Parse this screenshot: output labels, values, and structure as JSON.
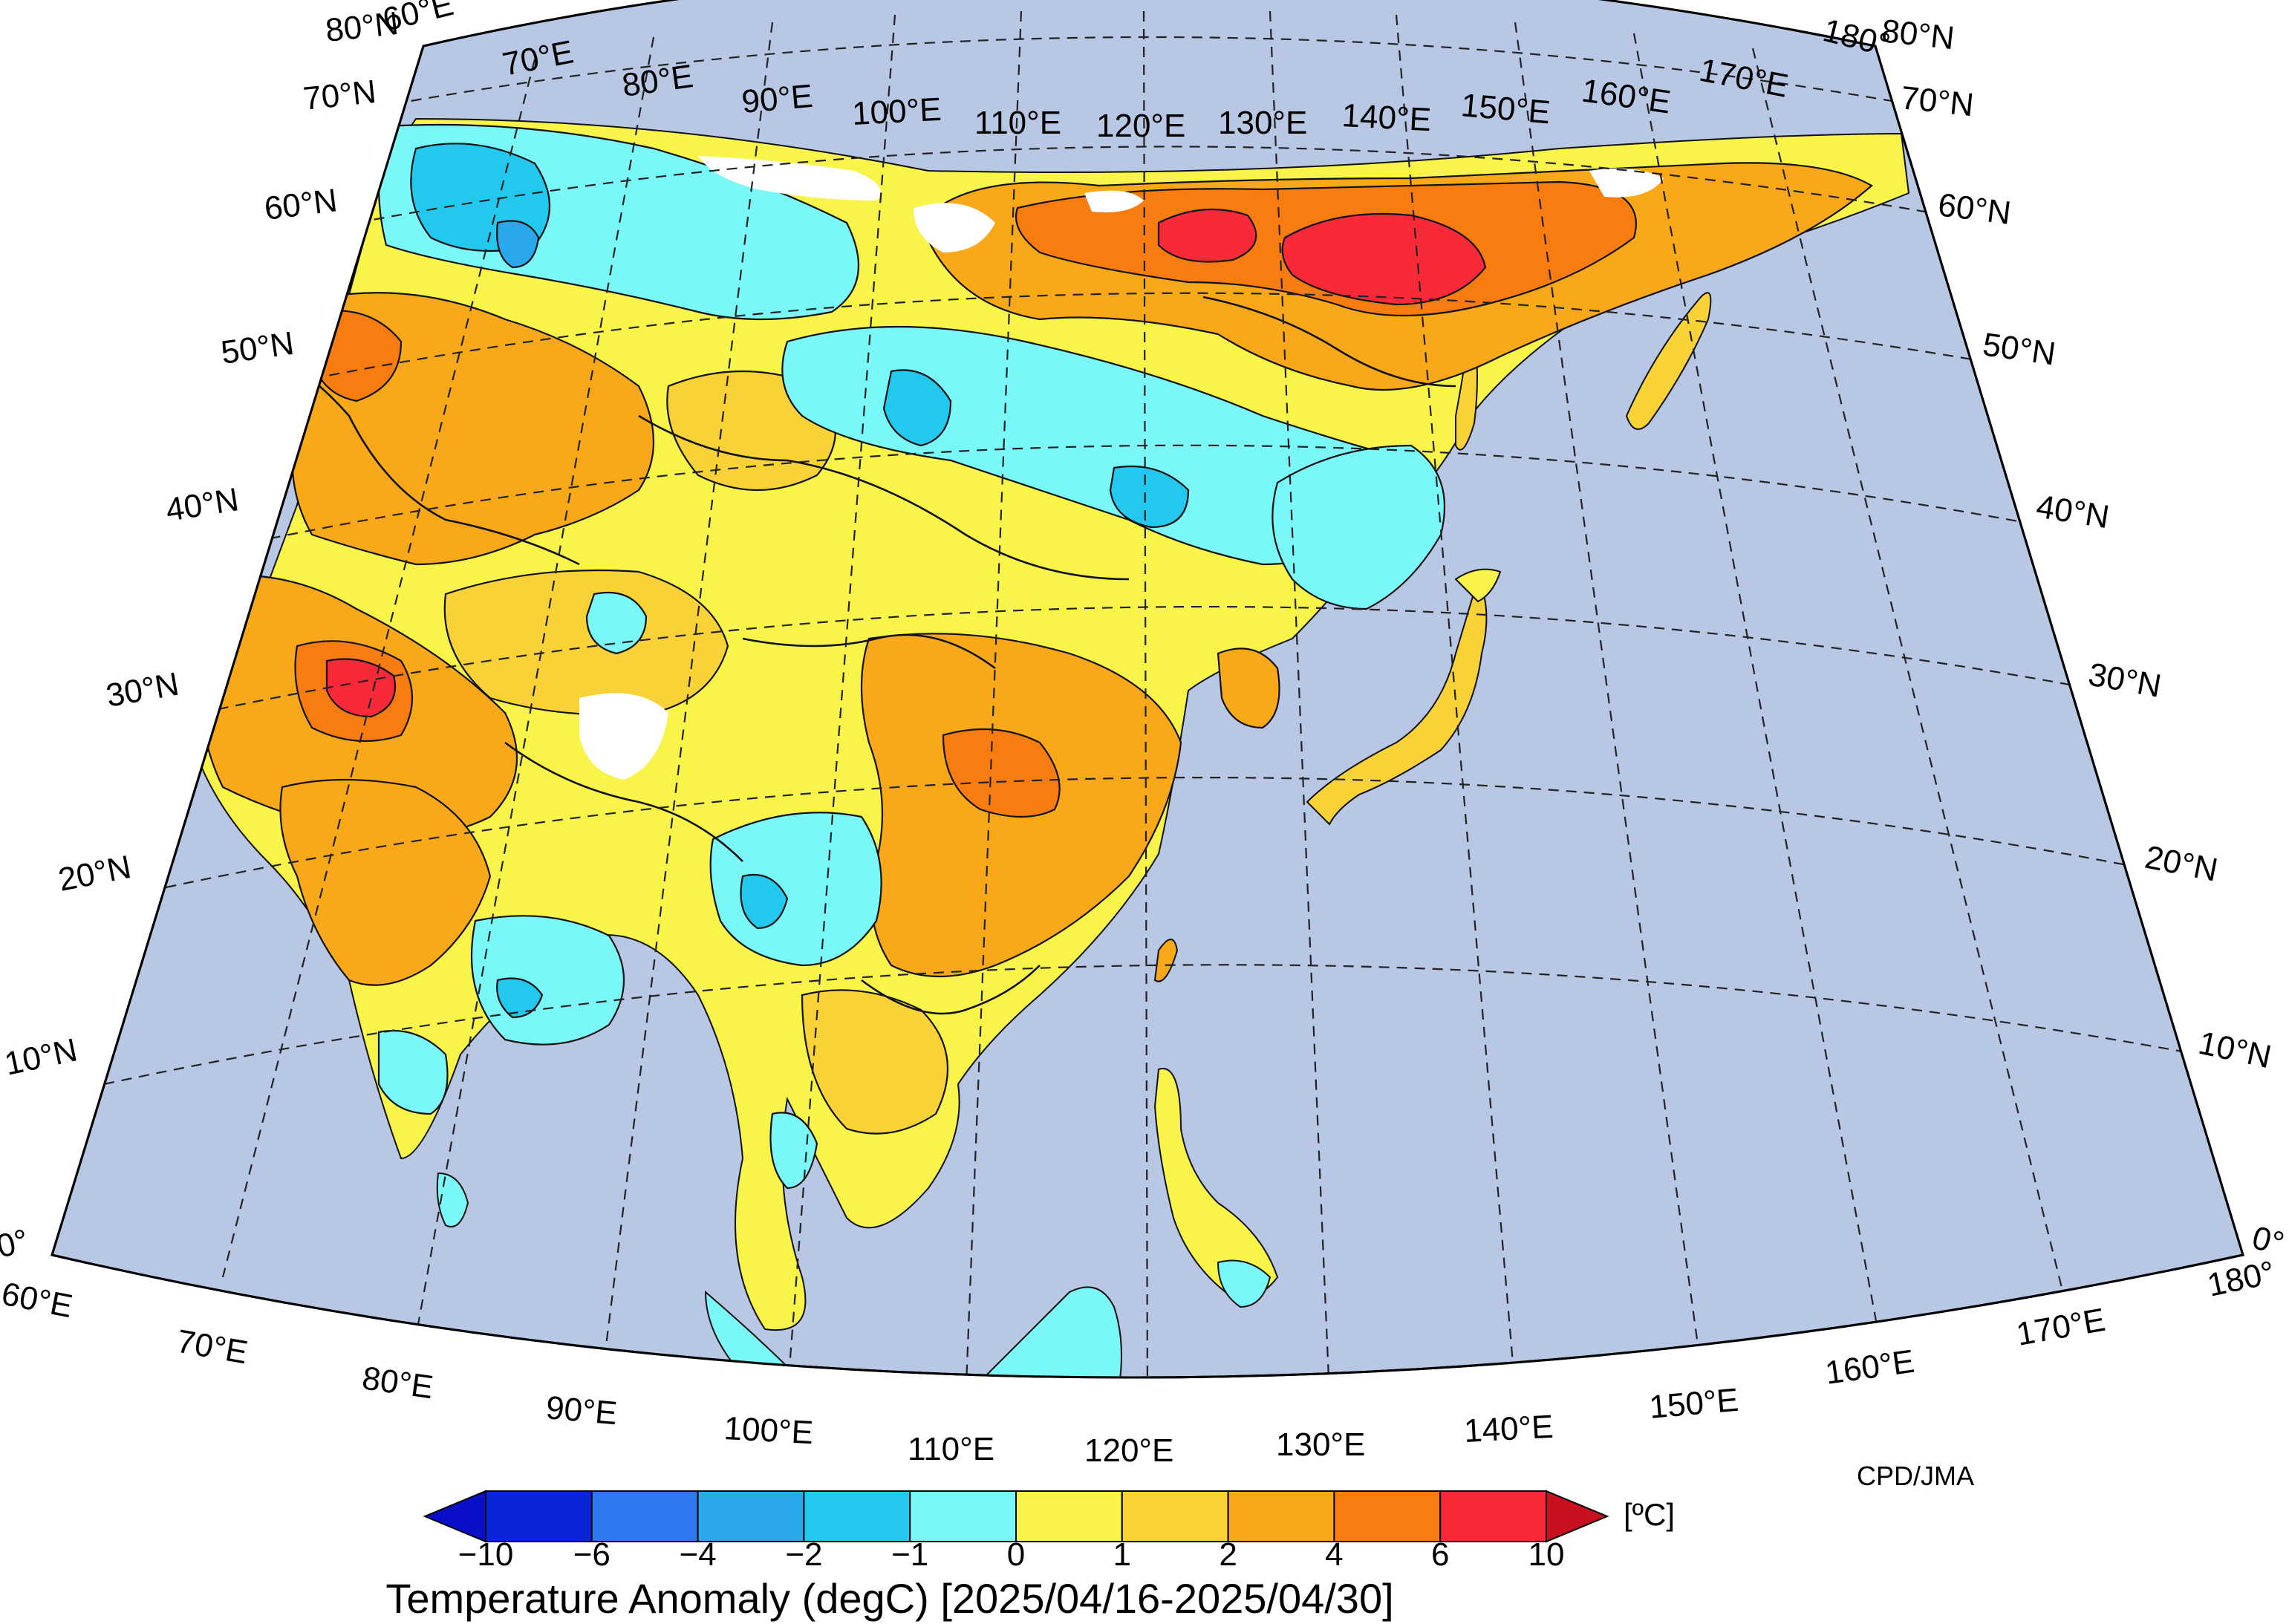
{
  "map": {
    "title": "Temperature Anomaly (degC) [2025/04/16-2025/04/30]",
    "credit": "CPD/JMA",
    "unit": "[ºC]",
    "longitude_labels": [
      "60°E",
      "70°E",
      "80°E",
      "90°E",
      "100°E",
      "110°E",
      "120°E",
      "130°E",
      "140°E",
      "150°E",
      "160°E",
      "170°E",
      "180°"
    ],
    "latitude_labels": [
      "0°",
      "10°N",
      "20°N",
      "30°N",
      "40°N",
      "50°N",
      "60°N",
      "70°N",
      "80°N"
    ],
    "colorbar": {
      "ticks": [
        "−10",
        "−6",
        "−4",
        "−2",
        "−1",
        "0",
        "1",
        "2",
        "4",
        "6",
        "10"
      ],
      "colors": [
        "#0a24d8",
        "#2f78f2",
        "#2aa8ee",
        "#22c8ee",
        "#7af8f8",
        "#f8f44a",
        "#f8d236",
        "#f8a818",
        "#f87c10",
        "#f82a3a"
      ],
      "under_color": "#0a10c8",
      "over_color": "#c81020"
    },
    "colors": {
      "ocean": "#b8c8e4",
      "missing": "#ffffff"
    }
  }
}
